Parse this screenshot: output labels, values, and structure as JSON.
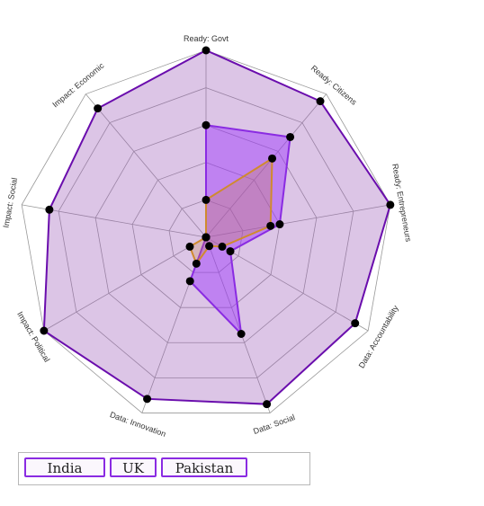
{
  "chart_data": {
    "type": "radar",
    "axes": [
      "Ready: Govt",
      "Ready: Citizens",
      "Ready: Entrepreneurs",
      "Data: Accountability",
      "Data: Social",
      "Data: Innovation",
      "Impact: Political",
      "Impact: Social",
      "Impact: Economic"
    ],
    "range": [
      0,
      100
    ],
    "grid_levels": 5,
    "series": [
      {
        "name": "UK",
        "values": [
          100,
          95,
          100,
          92,
          95,
          92,
          100,
          85,
          90
        ],
        "color": "#6a0dad",
        "fill": "#9b59b6",
        "fill_opacity": 0.35
      },
      {
        "name": "India",
        "values": [
          60,
          70,
          40,
          15,
          55,
          25,
          0,
          0,
          0
        ],
        "color": "#8a2be2",
        "fill": "#9b30ff",
        "fill_opacity": 0.45
      },
      {
        "name": "Pakistan",
        "values": [
          20,
          55,
          35,
          10,
          5,
          15,
          10,
          0,
          0
        ],
        "color": "#d08a2e",
        "fill": "#c8843a",
        "fill_opacity": 0.25
      }
    ]
  },
  "legend": {
    "india": "India",
    "uk": "UK",
    "pakistan": "Pakistan"
  },
  "colors": {
    "grid": "#999999",
    "marker": "#000000"
  }
}
